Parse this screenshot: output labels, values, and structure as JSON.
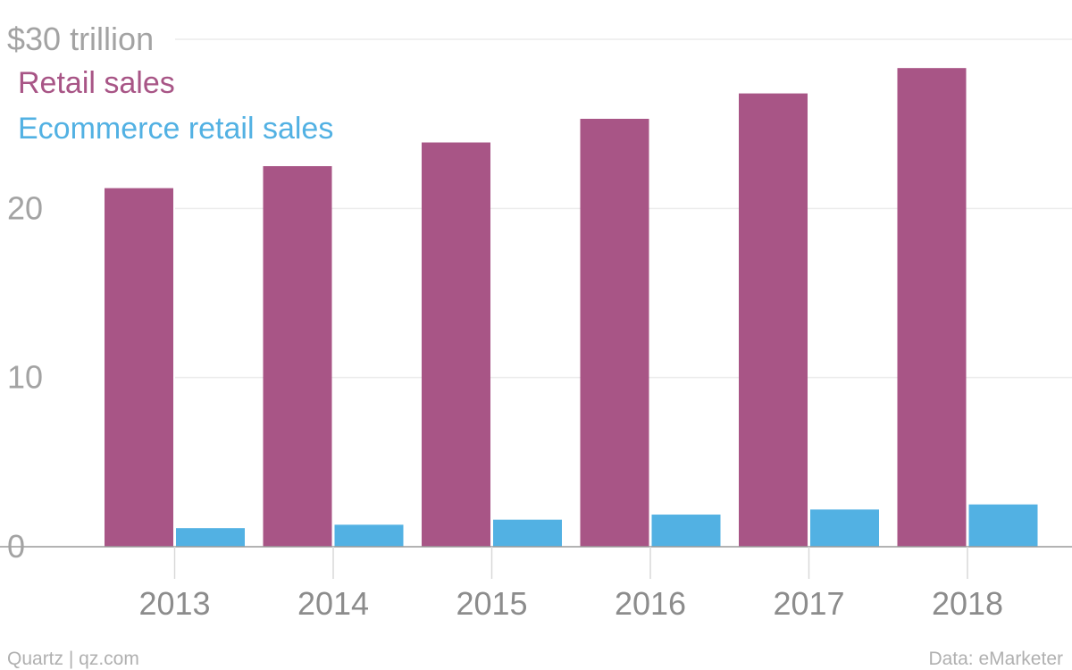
{
  "chart_data": {
    "type": "bar",
    "title": "",
    "xlabel": "",
    "ylabel": "",
    "y_unit_label": "$30 trillion",
    "ylim": [
      0,
      30
    ],
    "yticks": [
      {
        "value": 0,
        "label": "0"
      },
      {
        "value": 10,
        "label": "10"
      },
      {
        "value": 20,
        "label": "20"
      },
      {
        "value": 30,
        "label": "$30 trillion"
      }
    ],
    "categories": [
      "2013",
      "2014",
      "2015",
      "2016",
      "2017",
      "2018"
    ],
    "series": [
      {
        "name": "Retail sales",
        "color": "#a85586",
        "values": [
          21.2,
          22.5,
          23.9,
          25.3,
          26.8,
          28.3
        ]
      },
      {
        "name": "Ecommerce retail sales",
        "color": "#52b1e3",
        "values": [
          1.1,
          1.3,
          1.6,
          1.9,
          2.2,
          2.5
        ]
      }
    ],
    "legend": "top-left",
    "grid": true
  },
  "footer": {
    "source_left": "Quartz | qz.com",
    "source_right": "Data: eMarketer"
  }
}
